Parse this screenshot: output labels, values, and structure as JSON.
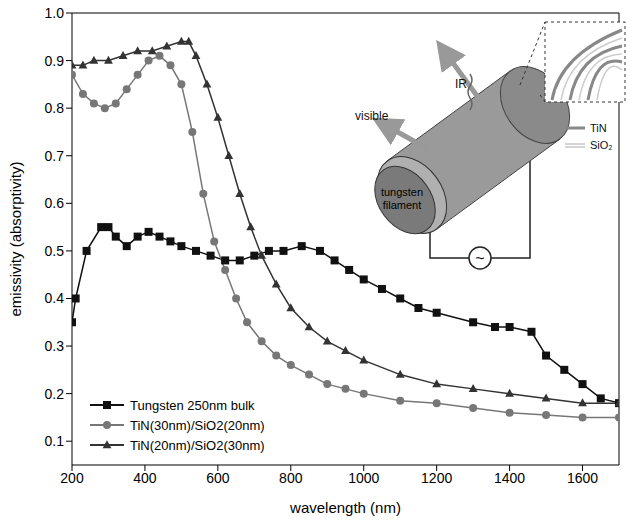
{
  "chart_data": {
    "type": "line",
    "xlabel": "wavelength (nm)",
    "ylabel": "emissivity (absorptivity)",
    "xlim": [
      200,
      1700
    ],
    "ylim": [
      0.05,
      1.0
    ],
    "xticks": [
      200,
      400,
      600,
      800,
      1000,
      1200,
      1400,
      1600
    ],
    "yticks": [
      0.1,
      0.2,
      0.3,
      0.4,
      0.5,
      0.6,
      0.7,
      0.8,
      0.9,
      {
        "value": 1.0,
        "label": "1.0"
      }
    ],
    "grid": false,
    "legend": "lower left",
    "annotations": [
      "IR",
      "visible",
      "tungsten filament",
      "TiN",
      "SiO₂",
      "~"
    ],
    "series": [
      {
        "name": "Tungsten 250nm bulk",
        "color": "#111111",
        "marker": "square",
        "x": [
          200,
          210,
          240,
          280,
          300,
          320,
          350,
          380,
          410,
          440,
          470,
          500,
          540,
          580,
          620,
          660,
          700,
          740,
          780,
          830,
          880,
          920,
          960,
          1000,
          1050,
          1100,
          1150,
          1200,
          1300,
          1360,
          1400,
          1460,
          1500,
          1550,
          1600,
          1650,
          1700
        ],
        "values": [
          0.35,
          0.4,
          0.5,
          0.55,
          0.55,
          0.53,
          0.51,
          0.53,
          0.54,
          0.53,
          0.52,
          0.51,
          0.5,
          0.49,
          0.48,
          0.48,
          0.49,
          0.5,
          0.5,
          0.51,
          0.5,
          0.48,
          0.46,
          0.44,
          0.42,
          0.4,
          0.38,
          0.37,
          0.35,
          0.34,
          0.34,
          0.33,
          0.28,
          0.25,
          0.22,
          0.19,
          0.18
        ]
      },
      {
        "name": "TiN(30nm)/SiO2(20nm)",
        "color": "#777777",
        "marker": "circle",
        "x": [
          200,
          230,
          260,
          290,
          320,
          350,
          380,
          410,
          440,
          470,
          500,
          530,
          560,
          590,
          620,
          650,
          680,
          720,
          760,
          800,
          850,
          900,
          950,
          1000,
          1100,
          1200,
          1300,
          1400,
          1500,
          1600,
          1700
        ],
        "values": [
          0.87,
          0.83,
          0.81,
          0.8,
          0.81,
          0.84,
          0.87,
          0.9,
          0.91,
          0.89,
          0.85,
          0.75,
          0.62,
          0.52,
          0.46,
          0.4,
          0.35,
          0.31,
          0.28,
          0.26,
          0.24,
          0.22,
          0.21,
          0.2,
          0.185,
          0.18,
          0.17,
          0.16,
          0.155,
          0.15,
          0.15
        ]
      },
      {
        "name": "TiN(20nm)/SiO2(30nm)",
        "color": "#333333",
        "marker": "triangle",
        "x": [
          200,
          230,
          260,
          300,
          340,
          380,
          420,
          460,
          500,
          520,
          540,
          570,
          600,
          630,
          660,
          690,
          720,
          760,
          800,
          850,
          900,
          950,
          1000,
          1100,
          1200,
          1300,
          1400,
          1500,
          1600,
          1700
        ],
        "values": [
          0.89,
          0.89,
          0.9,
          0.9,
          0.91,
          0.92,
          0.92,
          0.93,
          0.94,
          0.94,
          0.91,
          0.85,
          0.78,
          0.7,
          0.62,
          0.55,
          0.49,
          0.43,
          0.38,
          0.34,
          0.31,
          0.29,
          0.27,
          0.24,
          0.22,
          0.21,
          0.2,
          0.19,
          0.18,
          0.18
        ]
      }
    ]
  }
}
